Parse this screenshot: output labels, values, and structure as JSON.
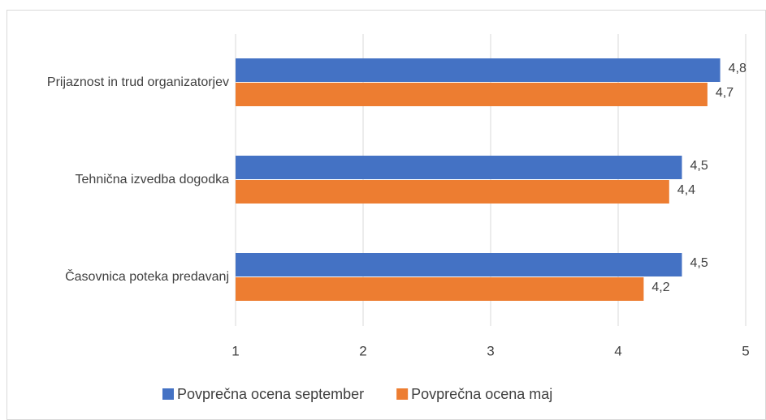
{
  "chart_data": {
    "type": "bar",
    "orientation": "horizontal",
    "categories": [
      "Prijaznost in trud organizatorjev",
      "Tehnična izvedba dogodka",
      "Časovnica poteka predavanj"
    ],
    "series": [
      {
        "name": "Povprečna ocena september",
        "color": "#4472c4",
        "values": [
          4.8,
          4.5,
          4.5
        ],
        "value_labels": [
          "4,8",
          "4,5",
          "4,5"
        ]
      },
      {
        "name": "Povprečna ocena maj",
        "color": "#ed7d31",
        "values": [
          4.7,
          4.4,
          4.2
        ],
        "value_labels": [
          "4,7",
          "4,4",
          "4,2"
        ]
      }
    ],
    "xlim": [
      1,
      5
    ],
    "xticks": [
      1,
      2,
      3,
      4,
      5
    ],
    "grid": true,
    "legend": "bottom"
  }
}
